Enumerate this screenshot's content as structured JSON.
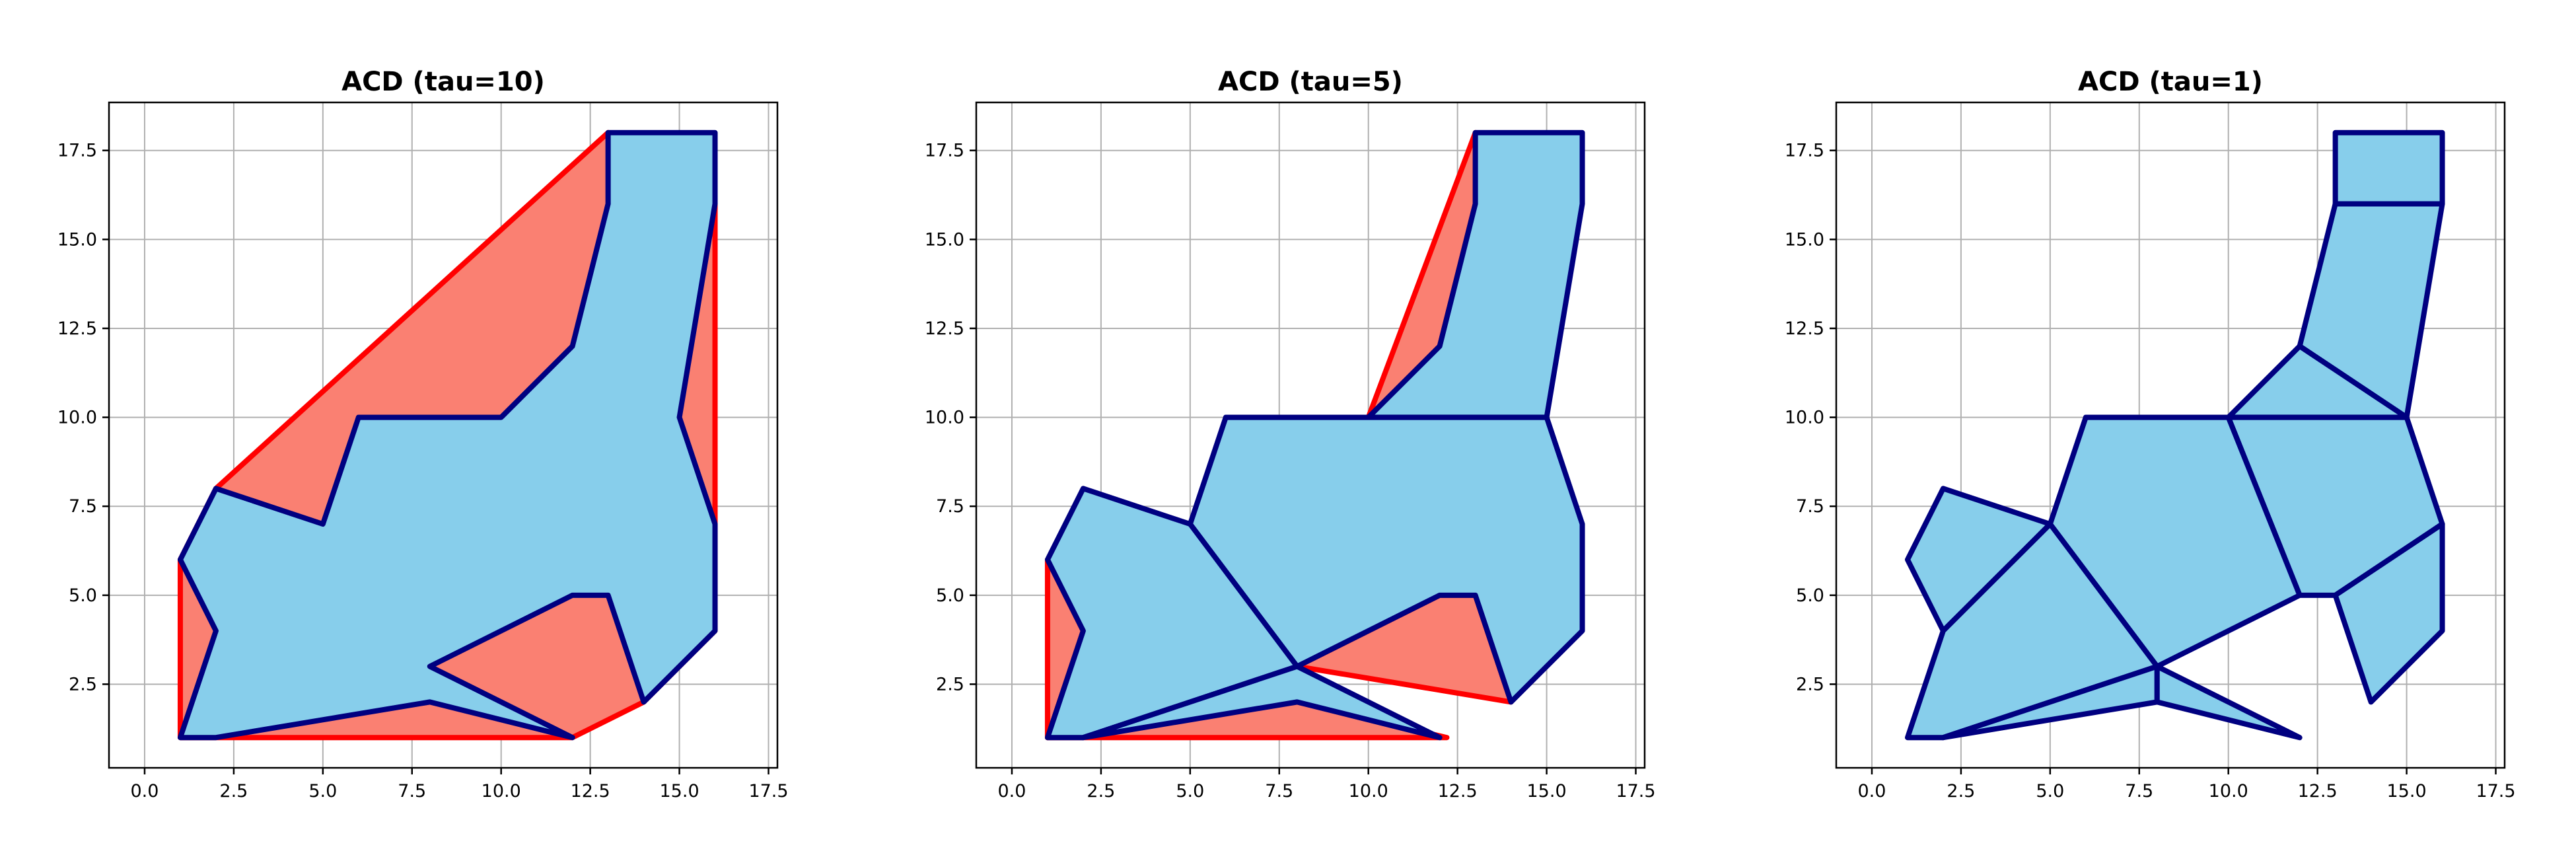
{
  "chart_data": [
    {
      "type": "polygon",
      "title": "ACD (tau=10)",
      "xlim": [
        -1,
        17.75
      ],
      "ylim": [
        0.15,
        18.85
      ],
      "xticks": [
        "0.0",
        "2.5",
        "5.0",
        "7.5",
        "10.0",
        "12.5",
        "15.0",
        "17.5"
      ],
      "yticks": [
        "2.5",
        "5.0",
        "7.5",
        "10.0",
        "12.5",
        "15.0",
        "17.5"
      ],
      "grid": true,
      "hulls": [
        [
          [
            1,
            1
          ],
          [
            12,
            1
          ],
          [
            14,
            2
          ],
          [
            16,
            4
          ],
          [
            16,
            16
          ],
          [
            13,
            18
          ],
          [
            2,
            8
          ],
          [
            1,
            6
          ]
        ]
      ],
      "pieces": [
        [
          [
            1,
            1
          ],
          [
            2,
            1
          ],
          [
            8,
            2
          ],
          [
            12,
            1
          ],
          [
            8,
            3
          ],
          [
            12,
            5
          ],
          [
            13,
            5
          ],
          [
            14,
            2
          ],
          [
            16,
            4
          ],
          [
            16,
            7
          ],
          [
            15,
            10
          ],
          [
            16,
            16
          ],
          [
            16,
            18
          ],
          [
            13,
            18
          ],
          [
            13,
            16
          ],
          [
            12,
            12
          ],
          [
            10,
            10
          ],
          [
            6,
            10
          ],
          [
            5,
            7
          ],
          [
            2,
            8
          ],
          [
            1,
            6
          ],
          [
            2,
            4
          ]
        ]
      ]
    },
    {
      "type": "polygon",
      "title": "ACD (tau=5)",
      "xlim": [
        -1,
        17.75
      ],
      "ylim": [
        0.15,
        18.85
      ],
      "xticks": [
        "0.0",
        "2.5",
        "5.0",
        "7.5",
        "10.0",
        "12.5",
        "15.0",
        "17.5"
      ],
      "yticks": [
        "2.5",
        "5.0",
        "7.5",
        "10.0",
        "12.5",
        "15.0",
        "17.5"
      ],
      "grid": true,
      "hulls": [
        [
          [
            10,
            10
          ],
          [
            13,
            18
          ],
          [
            13,
            16
          ],
          [
            12,
            12
          ]
        ],
        [
          [
            1,
            1
          ],
          [
            1,
            6
          ],
          [
            2,
            4
          ]
        ],
        [
          [
            8,
            3
          ],
          [
            12,
            5
          ],
          [
            13,
            5
          ],
          [
            14,
            2
          ]
        ],
        [
          [
            1,
            1
          ],
          [
            2,
            1
          ],
          [
            12.2,
            1
          ],
          [
            8,
            2
          ]
        ]
      ],
      "pieces": [
        [
          [
            10,
            10
          ],
          [
            12,
            12
          ],
          [
            13,
            16
          ],
          [
            13,
            18
          ],
          [
            16,
            18
          ],
          [
            16,
            16
          ],
          [
            15,
            10
          ]
        ],
        [
          [
            6,
            10
          ],
          [
            15,
            10
          ],
          [
            16,
            7
          ],
          [
            16,
            4
          ],
          [
            14,
            2
          ],
          [
            13,
            5
          ],
          [
            12,
            5
          ],
          [
            8,
            3
          ],
          [
            5,
            7
          ]
        ],
        [
          [
            1,
            6
          ],
          [
            2,
            8
          ],
          [
            5,
            7
          ],
          [
            8,
            3
          ],
          [
            2,
            1
          ],
          [
            1,
            1
          ],
          [
            2,
            4
          ]
        ],
        [
          [
            2,
            1
          ],
          [
            8,
            3
          ],
          [
            12,
            1
          ],
          [
            8,
            2
          ]
        ]
      ]
    },
    {
      "type": "polygon",
      "title": "ACD (tau=1)",
      "xlim": [
        -1,
        17.75
      ],
      "ylim": [
        0.15,
        18.85
      ],
      "xticks": [
        "0.0",
        "2.5",
        "5.0",
        "7.5",
        "10.0",
        "12.5",
        "15.0",
        "17.5"
      ],
      "yticks": [
        "2.5",
        "5.0",
        "7.5",
        "10.0",
        "12.5",
        "15.0",
        "17.5"
      ],
      "grid": true,
      "hulls": [],
      "pieces": [
        [
          [
            13,
            16
          ],
          [
            16,
            16
          ],
          [
            16,
            18
          ],
          [
            13,
            18
          ]
        ],
        [
          [
            12,
            12
          ],
          [
            13,
            16
          ],
          [
            16,
            16
          ],
          [
            15,
            10
          ]
        ],
        [
          [
            10,
            10
          ],
          [
            12,
            12
          ],
          [
            15,
            10
          ]
        ],
        [
          [
            10,
            10
          ],
          [
            15,
            10
          ],
          [
            16,
            7
          ],
          [
            13,
            5
          ],
          [
            12,
            5
          ]
        ],
        [
          [
            6,
            10
          ],
          [
            10,
            10
          ],
          [
            12,
            5
          ],
          [
            8,
            3
          ],
          [
            5,
            7
          ]
        ],
        [
          [
            13,
            5
          ],
          [
            16,
            7
          ],
          [
            16,
            4
          ],
          [
            14,
            2
          ]
        ],
        [
          [
            1,
            6
          ],
          [
            2,
            8
          ],
          [
            5,
            7
          ],
          [
            2,
            4
          ]
        ],
        [
          [
            2,
            4
          ],
          [
            5,
            7
          ],
          [
            8,
            3
          ],
          [
            2,
            1
          ],
          [
            1,
            1
          ]
        ],
        [
          [
            2,
            1
          ],
          [
            8,
            3
          ],
          [
            8,
            2
          ]
        ],
        [
          [
            8,
            2
          ],
          [
            8,
            3
          ],
          [
            12,
            1
          ]
        ]
      ]
    }
  ],
  "colors": {
    "hull_fill": "#fa8072",
    "hull_edge": "#ff0000",
    "piece_fill": "#87ceeb",
    "piece_edge": "#000080"
  }
}
